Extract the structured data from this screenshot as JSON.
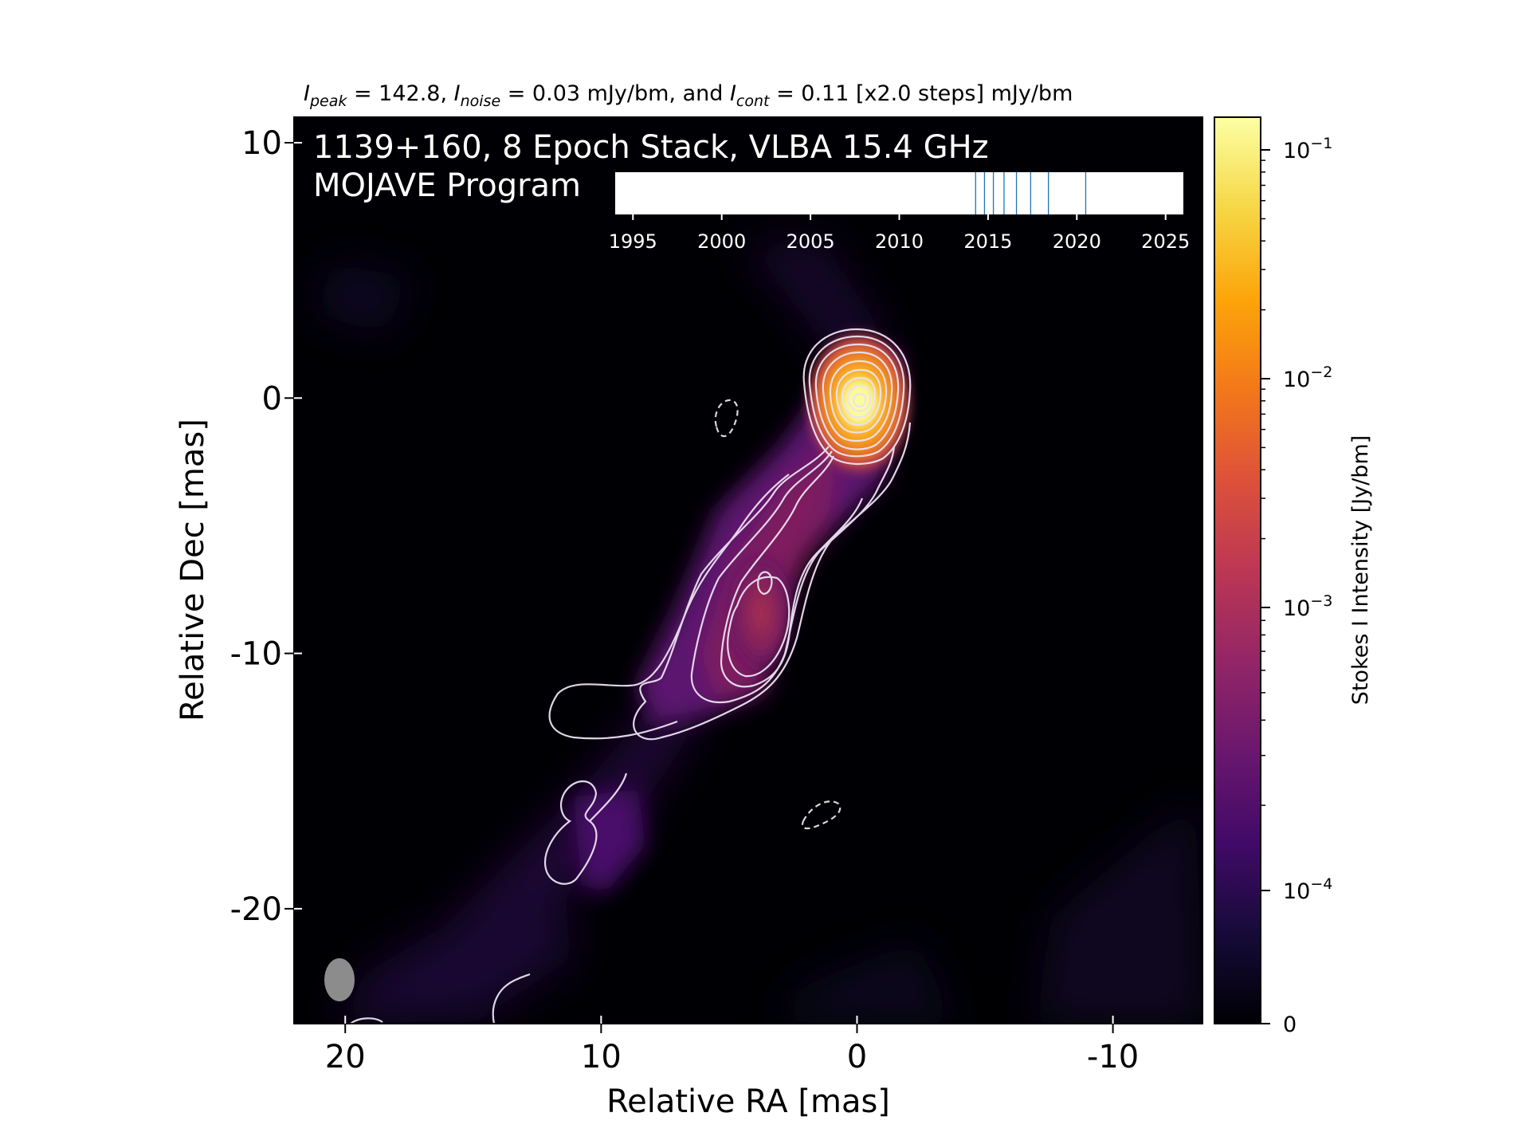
{
  "header": {
    "peak_name": "I",
    "peak_sub": "peak",
    "peak_value": " = 142.8, ",
    "noise_name": "I",
    "noise_sub": "noise",
    "noise_value": " = 0.03 mJy/bm, and ",
    "cont_name": "I",
    "cont_sub": "cont",
    "cont_value": " = 0.11 [x2.0 steps] mJy/bm"
  },
  "overlay": {
    "line1": "1139+160, 8 Epoch Stack, VLBA 15.4 GHz",
    "line2": "MOJAVE Program"
  },
  "chart_data": {
    "type": "heatmap",
    "xlabel": "Relative RA [mas]",
    "ylabel": "Relative Dec [mas]",
    "xlim": [
      22,
      -13.5
    ],
    "ylim": [
      -24.5,
      11
    ],
    "xticks": [
      20,
      10,
      0,
      -10
    ],
    "yticks": [
      10,
      0,
      -10,
      -20
    ],
    "colormap": "inferno",
    "colorbar": {
      "label": "Stokes I Intensity [Jy/bm]",
      "scale": "log",
      "ticks": [
        {
          "value": 0.1,
          "label_base": "10",
          "label_exp": "−1"
        },
        {
          "value": 0.01,
          "label_base": "10",
          "label_exp": "−2"
        },
        {
          "value": 0.001,
          "label_base": "10",
          "label_exp": "−3"
        },
        {
          "value": 0.0001,
          "label_base": "10",
          "label_exp": "−4"
        },
        {
          "value": 0,
          "label_base": "0",
          "label_exp": ""
        }
      ]
    },
    "epoch_timeline": {
      "xlim": [
        1994,
        2026
      ],
      "ticks": [
        1995,
        2000,
        2005,
        2010,
        2015,
        2020,
        2025
      ],
      "epochs": [
        2014.3,
        2014.8,
        2015.3,
        2015.9,
        2016.6,
        2017.4,
        2018.4,
        2020.5
      ]
    },
    "beam": {
      "major_mas": 1.7,
      "minor_mas": 1.2,
      "pa_deg": 0
    },
    "peak_intensity_mJy": 142.8,
    "noise_mJy": 0.03,
    "lowest_contour_mJy": 0.11,
    "contour_step": 2.0
  }
}
